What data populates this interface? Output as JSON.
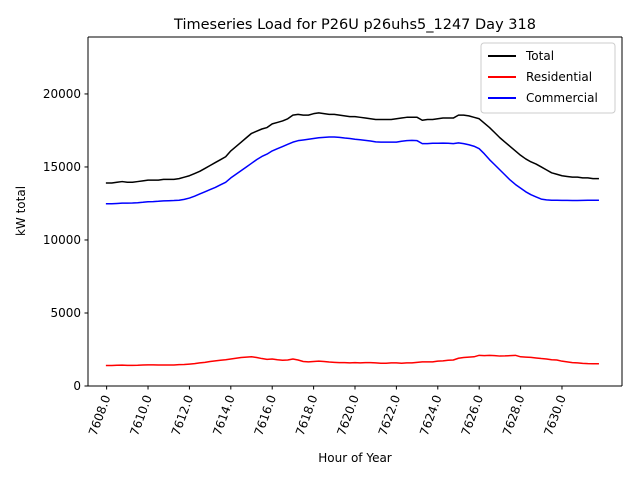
{
  "chart_data": {
    "type": "line",
    "title": "Timeseries Load for P26U p26uhs5_1247  Day 318",
    "xlabel": "Hour of Year",
    "ylabel": "kW total",
    "xlim": [
      7607.1,
      7632.9
    ],
    "ylim": [
      0,
      23900
    ],
    "xticks": [
      7608,
      7610,
      7612,
      7614,
      7616,
      7618,
      7620,
      7622,
      7624,
      7626,
      7628,
      7630
    ],
    "xtick_labels": [
      "7608.0",
      "7610.0",
      "7612.0",
      "7614.0",
      "7616.0",
      "7618.0",
      "7620.0",
      "7622.0",
      "7624.0",
      "7626.0",
      "7628.0",
      "7630.0"
    ],
    "yticks": [
      0,
      5000,
      10000,
      15000,
      20000
    ],
    "ytick_labels": [
      "0",
      "5000",
      "10000",
      "15000",
      "20000"
    ],
    "grid": false,
    "legend_position": "top-right",
    "x": [
      7608.0,
      7608.25,
      7608.5,
      7608.75,
      7609.0,
      7609.25,
      7609.5,
      7609.75,
      7610.0,
      7610.25,
      7610.5,
      7610.75,
      7611.0,
      7611.25,
      7611.5,
      7611.75,
      7612.0,
      7612.25,
      7612.5,
      7612.75,
      7613.0,
      7613.25,
      7613.5,
      7613.75,
      7614.0,
      7614.25,
      7614.5,
      7614.75,
      7615.0,
      7615.25,
      7615.5,
      7615.75,
      7616.0,
      7616.25,
      7616.5,
      7616.75,
      7617.0,
      7617.25,
      7617.5,
      7617.75,
      7618.0,
      7618.25,
      7618.5,
      7618.75,
      7619.0,
      7619.25,
      7619.5,
      7619.75,
      7620.0,
      7620.25,
      7620.5,
      7620.75,
      7621.0,
      7621.25,
      7621.5,
      7621.75,
      7622.0,
      7622.25,
      7622.5,
      7622.75,
      7623.0,
      7623.25,
      7623.5,
      7623.75,
      7624.0,
      7624.25,
      7624.5,
      7624.75,
      7625.0,
      7625.25,
      7625.5,
      7625.75,
      7626.0,
      7626.25,
      7626.5,
      7626.75,
      7627.0,
      7627.25,
      7627.5,
      7627.75,
      7628.0,
      7628.25,
      7628.5,
      7628.75,
      7629.0,
      7629.25,
      7629.5,
      7629.75,
      7630.0,
      7630.25,
      7630.5,
      7630.75,
      7631.0,
      7631.25,
      7631.5,
      7631.75
    ],
    "series": [
      {
        "name": "Total",
        "color": "#000000",
        "values": [
          13900,
          13900,
          13950,
          14000,
          13950,
          13950,
          14000,
          14050,
          14100,
          14100,
          14100,
          14150,
          14150,
          14150,
          14200,
          14300,
          14400,
          14550,
          14700,
          14900,
          15100,
          15300,
          15500,
          15700,
          16100,
          16400,
          16700,
          17000,
          17300,
          17450,
          17600,
          17700,
          17950,
          18050,
          18150,
          18300,
          18550,
          18600,
          18550,
          18550,
          18650,
          18700,
          18650,
          18600,
          18600,
          18550,
          18500,
          18450,
          18450,
          18400,
          18350,
          18300,
          18250,
          18250,
          18250,
          18250,
          18300,
          18350,
          18400,
          18400,
          18400,
          18200,
          18250,
          18250,
          18300,
          18350,
          18350,
          18350,
          18550,
          18550,
          18500,
          18400,
          18300,
          18000,
          17700,
          17350,
          17000,
          16700,
          16400,
          16100,
          15800,
          15550,
          15350,
          15200,
          15000,
          14800,
          14600,
          14500,
          14400,
          14350,
          14300,
          14300,
          14250,
          14250,
          14200,
          14200
        ]
      },
      {
        "name": "Residential",
        "color": "#ff0000",
        "values": [
          1400,
          1400,
          1420,
          1430,
          1410,
          1410,
          1420,
          1440,
          1450,
          1450,
          1440,
          1440,
          1440,
          1440,
          1460,
          1470,
          1500,
          1530,
          1580,
          1620,
          1680,
          1720,
          1760,
          1800,
          1850,
          1900,
          1950,
          1980,
          2000,
          1950,
          1880,
          1820,
          1850,
          1800,
          1760,
          1780,
          1850,
          1780,
          1680,
          1650,
          1680,
          1700,
          1680,
          1640,
          1620,
          1600,
          1600,
          1580,
          1600,
          1580,
          1600,
          1600,
          1580,
          1560,
          1560,
          1580,
          1580,
          1560,
          1580,
          1580,
          1620,
          1650,
          1650,
          1650,
          1700,
          1720,
          1760,
          1780,
          1900,
          1950,
          1980,
          2000,
          2100,
          2080,
          2100,
          2080,
          2050,
          2060,
          2080,
          2100,
          2000,
          1980,
          1960,
          1920,
          1880,
          1850,
          1800,
          1780,
          1700,
          1650,
          1600,
          1580,
          1550,
          1530,
          1520,
          1520
        ]
      },
      {
        "name": "Commercial",
        "color": "#0000ff",
        "values": [
          12480,
          12480,
          12500,
          12520,
          12520,
          12530,
          12550,
          12580,
          12620,
          12630,
          12650,
          12680,
          12690,
          12700,
          12720,
          12780,
          12870,
          13000,
          13150,
          13300,
          13450,
          13600,
          13780,
          13950,
          14250,
          14500,
          14750,
          15000,
          15250,
          15500,
          15720,
          15880,
          16100,
          16250,
          16400,
          16550,
          16700,
          16800,
          16850,
          16900,
          16950,
          17000,
          17030,
          17050,
          17050,
          17030,
          16980,
          16950,
          16900,
          16860,
          16820,
          16780,
          16720,
          16700,
          16700,
          16700,
          16700,
          16760,
          16800,
          16820,
          16800,
          16600,
          16600,
          16620,
          16620,
          16630,
          16620,
          16600,
          16650,
          16600,
          16520,
          16420,
          16250,
          15900,
          15500,
          15150,
          14800,
          14450,
          14100,
          13800,
          13550,
          13300,
          13100,
          12950,
          12800,
          12750,
          12720,
          12720,
          12710,
          12710,
          12700,
          12700,
          12710,
          12720,
          12720,
          12720
        ]
      }
    ]
  }
}
